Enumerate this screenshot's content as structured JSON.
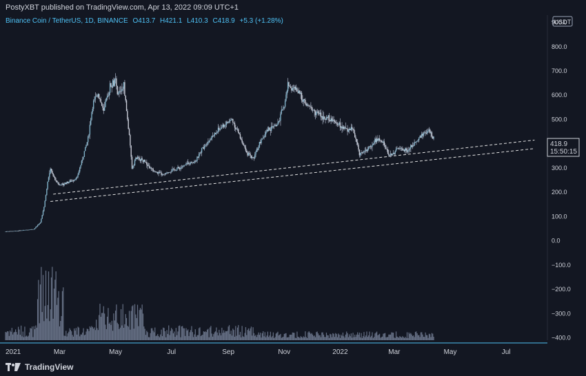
{
  "header": {
    "publish_line": "PostyXBT published on TradingView.com, Apr 13, 2022 09:09 UTC+1"
  },
  "legend": {
    "symbol": "Binance Coin / TetherUS, 1D, BINANCE",
    "open": "O413.7",
    "high": "H421.1",
    "low": "L410.3",
    "close": "C418.9",
    "change": "+5.3 (+1.28%)"
  },
  "footer": {
    "brand": "TradingView"
  },
  "colors": {
    "accent": "#4fc3f7",
    "candle": "#9aa3b5",
    "volume": "#667085",
    "grid_bg": "#131722"
  },
  "chart_data": {
    "type": "line",
    "currency_label": "USDT",
    "last_price": "418.9",
    "countdown": "15:50:15",
    "ylim": [
      -410,
      930
    ],
    "y_ticks": [
      "900.0",
      "800.0",
      "700.0",
      "600.0",
      "500.0",
      "400.0",
      "300.0",
      "200.0",
      "100.0",
      "0.0",
      "−100.0",
      "−200.0",
      "−300.0",
      "−400.0"
    ],
    "y_tick_values": [
      900,
      800,
      700,
      600,
      500,
      400,
      300,
      200,
      100,
      0,
      -100,
      -200,
      -300,
      -400
    ],
    "x_ticks": [
      "2021",
      "Mar",
      "May",
      "Jul",
      "Sep",
      "Nov",
      "2022",
      "Mar",
      "May",
      "Jul"
    ],
    "x_tick_dates": [
      "2021-01-01",
      "2021-03-01",
      "2021-05-01",
      "2021-07-01",
      "2021-09-01",
      "2021-11-01",
      "2022-01-01",
      "2022-03-01",
      "2022-05-01",
      "2022-07-01"
    ],
    "x_range": [
      "2021-01-01",
      "2022-08-15"
    ],
    "series": [
      {
        "dates": [
          "2021-01-01",
          "2021-01-15",
          "2021-02-01",
          "2021-02-08",
          "2021-02-12",
          "2021-02-16",
          "2021-02-19",
          "2021-02-23",
          "2021-02-28",
          "2021-03-10",
          "2021-03-20",
          "2021-04-01",
          "2021-04-06",
          "2021-04-12",
          "2021-04-18",
          "2021-04-25",
          "2021-05-01",
          "2021-05-03",
          "2021-05-10",
          "2021-05-16",
          "2021-05-19",
          "2021-05-23",
          "2021-06-01",
          "2021-06-10",
          "2021-06-22",
          "2021-07-01",
          "2021-07-10",
          "2021-07-20",
          "2021-07-28",
          "2021-08-05",
          "2021-08-15",
          "2021-08-25",
          "2021-09-05",
          "2021-09-15",
          "2021-09-21",
          "2021-09-28",
          "2021-10-05",
          "2021-10-15",
          "2021-10-25",
          "2021-11-01",
          "2021-11-05",
          "2021-11-15",
          "2021-11-25",
          "2021-12-05",
          "2021-12-15",
          "2021-12-28",
          "2022-01-05",
          "2022-01-15",
          "2022-01-22",
          "2022-02-01",
          "2022-02-10",
          "2022-02-18",
          "2022-02-24",
          "2022-03-05",
          "2022-03-15",
          "2022-03-25",
          "2022-04-01",
          "2022-04-08",
          "2022-04-13"
        ],
        "values": [
          38,
          41,
          48,
          75,
          140,
          240,
          300,
          260,
          230,
          240,
          260,
          420,
          560,
          610,
          530,
          640,
          660,
          600,
          640,
          430,
          300,
          340,
          330,
          290,
          270,
          290,
          300,
          320,
          330,
          390,
          430,
          470,
          500,
          420,
          360,
          340,
          400,
          460,
          480,
          560,
          640,
          620,
          560,
          530,
          510,
          490,
          460,
          460,
          360,
          380,
          420,
          400,
          350,
          380,
          370,
          410,
          440,
          450,
          418.9
        ]
      }
    ],
    "support_lines": [
      {
        "start": [
          "2021-02-22",
          192
        ],
        "end": [
          "2022-08-01",
          415
        ]
      },
      {
        "start": [
          "2021-02-19",
          162
        ],
        "end": [
          "2022-08-01",
          380
        ]
      }
    ]
  }
}
